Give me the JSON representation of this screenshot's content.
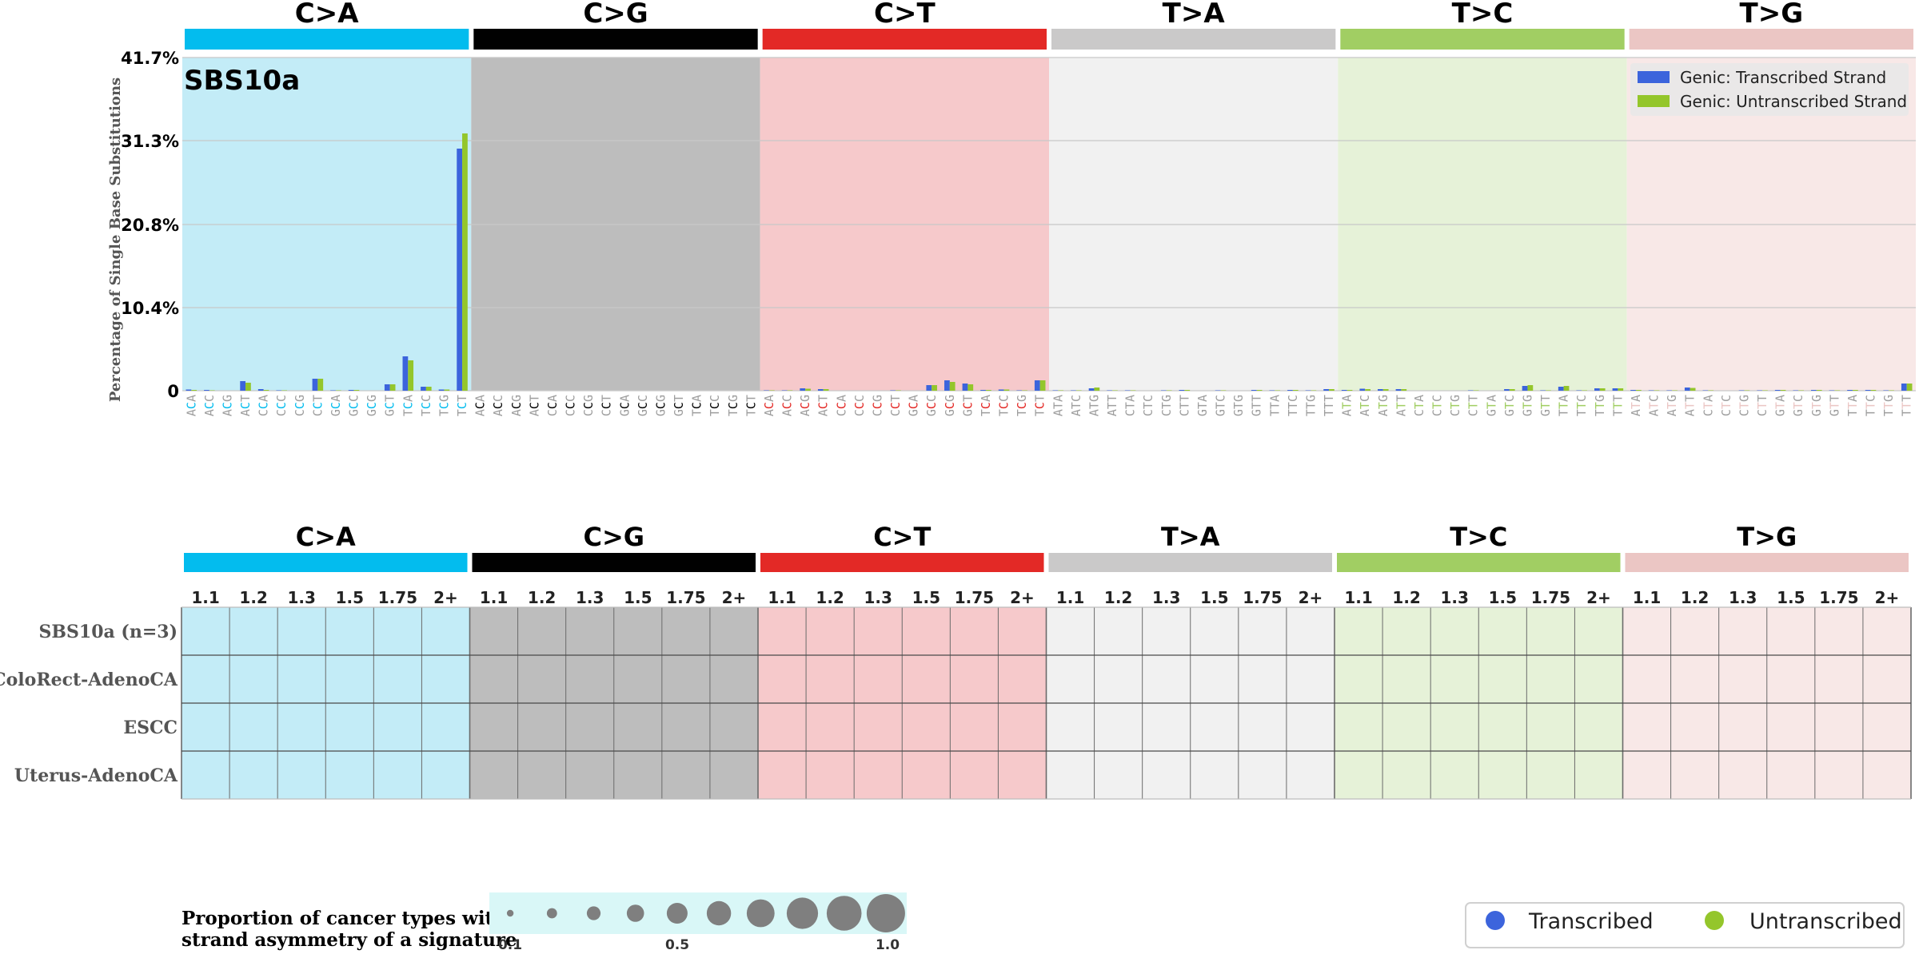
{
  "colors": {
    "mutation": [
      "#03bcee",
      "#010101",
      "#e32926",
      "#cac9c9",
      "#a1ce63",
      "#ebc6c4"
    ],
    "panel_bg": [
      "#c3ecf7",
      "#bdbdbd",
      "#f6c9cb",
      "#f1f1f1",
      "#e6f2d8",
      "#f8e8e7"
    ],
    "transcribed": "#3c64dc",
    "untranscribed": "#94c62b",
    "context_grey": "#9e9e9e",
    "context_center": [
      "#03bcee",
      "#010101",
      "#e32926",
      "#9e9e9e",
      "#a1ce63",
      "#ebc6c4"
    ],
    "bubble_bg": "#d9f7f7",
    "bubble": "#7f7f7f"
  },
  "chart_data": {
    "type": "bar",
    "signature": "SBS10a",
    "ylabel": "Percentage of Single Base Substitutions",
    "y_ticks": [
      "41.7%",
      "31.3%",
      "20.8%",
      "10.4%",
      "0"
    ],
    "ylim": [
      0,
      41.7
    ],
    "grid": true,
    "legend": {
      "placement": "top-right",
      "entries": [
        "Genic: Transcribed Strand",
        "Genic: Untranscribed Strand"
      ]
    },
    "mutation_types": [
      "C>A",
      "C>G",
      "C>T",
      "T>A",
      "T>C",
      "T>G"
    ],
    "contexts": [
      [
        "ACA",
        "ACC",
        "ACG",
        "ACT",
        "CCA",
        "CCC",
        "CCG",
        "CCT",
        "GCA",
        "GCC",
        "GCG",
        "GCT",
        "TCA",
        "TCC",
        "TCG",
        "TCT"
      ],
      [
        "ACA",
        "ACC",
        "ACG",
        "ACT",
        "CCA",
        "CCC",
        "CCG",
        "CCT",
        "GCA",
        "GCC",
        "GCG",
        "GCT",
        "TCA",
        "TCC",
        "TCG",
        "TCT"
      ],
      [
        "ACA",
        "ACC",
        "ACG",
        "ACT",
        "CCA",
        "CCC",
        "CCG",
        "CCT",
        "GCA",
        "GCC",
        "GCG",
        "GCT",
        "TCA",
        "TCC",
        "TCG",
        "TCT"
      ],
      [
        "ATA",
        "ATC",
        "ATG",
        "ATT",
        "CTA",
        "CTC",
        "CTG",
        "CTT",
        "GTA",
        "GTC",
        "GTG",
        "GTT",
        "TTA",
        "TTC",
        "TTG",
        "TTT"
      ],
      [
        "ATA",
        "ATC",
        "ATG",
        "ATT",
        "CTA",
        "CTC",
        "CTG",
        "CTT",
        "GTA",
        "GTC",
        "GTG",
        "GTT",
        "TTA",
        "TTC",
        "TTG",
        "TTT"
      ],
      [
        "ATA",
        "ATC",
        "ATG",
        "ATT",
        "CTA",
        "CTC",
        "CTG",
        "CTT",
        "GTA",
        "GTC",
        "GTG",
        "GTT",
        "TTA",
        "TTC",
        "TTG",
        "TTT"
      ]
    ],
    "series": [
      {
        "name": "Genic: Transcribed Strand",
        "values": [
          0.15,
          0.1,
          0,
          1.2,
          0.2,
          0.05,
          0,
          1.5,
          0.05,
          0.1,
          0,
          0.8,
          4.3,
          0.5,
          0.15,
          30.3,
          0,
          0,
          0,
          0,
          0,
          0,
          0,
          0,
          0,
          0,
          0,
          0,
          0,
          0,
          0,
          0,
          0.05,
          0.05,
          0.3,
          0.2,
          0,
          0,
          0,
          0.05,
          0,
          0.7,
          1.3,
          0.9,
          0.1,
          0.15,
          0.05,
          1.3,
          0.05,
          0.05,
          0.3,
          0.05,
          0.05,
          0,
          0.05,
          0.1,
          0,
          0.05,
          0,
          0.1,
          0.05,
          0.1,
          0.05,
          0.2,
          0.1,
          0.25,
          0.2,
          0.2,
          0,
          0,
          0,
          0.05,
          0,
          0.2,
          0.6,
          0.05,
          0.5,
          0.05,
          0.3,
          0.3,
          0.1,
          0.05,
          0.05,
          0.4,
          0.05,
          0,
          0.05,
          0.05,
          0.1,
          0.05,
          0.1,
          0.05,
          0.1,
          0.1,
          0.05,
          0.9
        ]
      },
      {
        "name": "Genic: Untranscribed Strand",
        "values": [
          0.1,
          0.05,
          0,
          1.0,
          0.1,
          0.05,
          0,
          1.5,
          0.05,
          0.1,
          0,
          0.8,
          3.8,
          0.5,
          0.15,
          32.2,
          0,
          0,
          0,
          0,
          0,
          0,
          0,
          0,
          0,
          0,
          0,
          0,
          0,
          0,
          0,
          0,
          0.05,
          0.05,
          0.25,
          0.2,
          0,
          0,
          0,
          0.05,
          0,
          0.7,
          1.1,
          0.8,
          0.1,
          0.15,
          0.05,
          1.3,
          0.05,
          0.05,
          0.4,
          0.05,
          0.05,
          0,
          0.05,
          0.1,
          0,
          0.05,
          0,
          0.1,
          0.05,
          0.1,
          0.05,
          0.2,
          0.1,
          0.2,
          0.2,
          0.2,
          0,
          0,
          0,
          0.05,
          0,
          0.2,
          0.7,
          0.05,
          0.6,
          0.05,
          0.3,
          0.3,
          0.1,
          0.05,
          0.05,
          0.35,
          0.05,
          0,
          0.05,
          0.05,
          0.1,
          0.05,
          0.1,
          0.05,
          0.1,
          0.1,
          0.05,
          0.9
        ]
      }
    ]
  },
  "strand_table": {
    "ratio_labels": [
      "1.1",
      "1.2",
      "1.3",
      "1.5",
      "1.75",
      "2+"
    ],
    "rows": [
      "SBS10a (n=3)",
      "ColoRect-AdenoCA",
      "ESCC",
      "Uterus-AdenoCA"
    ]
  },
  "proportion_legend": {
    "title_line1": "Proportion of cancer types with",
    "title_line2": "strand asymmetry of a signature",
    "tick_labels": [
      "0.1",
      "0.5",
      "1.0"
    ]
  },
  "strand_legend": {
    "labels": [
      "Transcribed",
      "Untranscribed"
    ]
  }
}
